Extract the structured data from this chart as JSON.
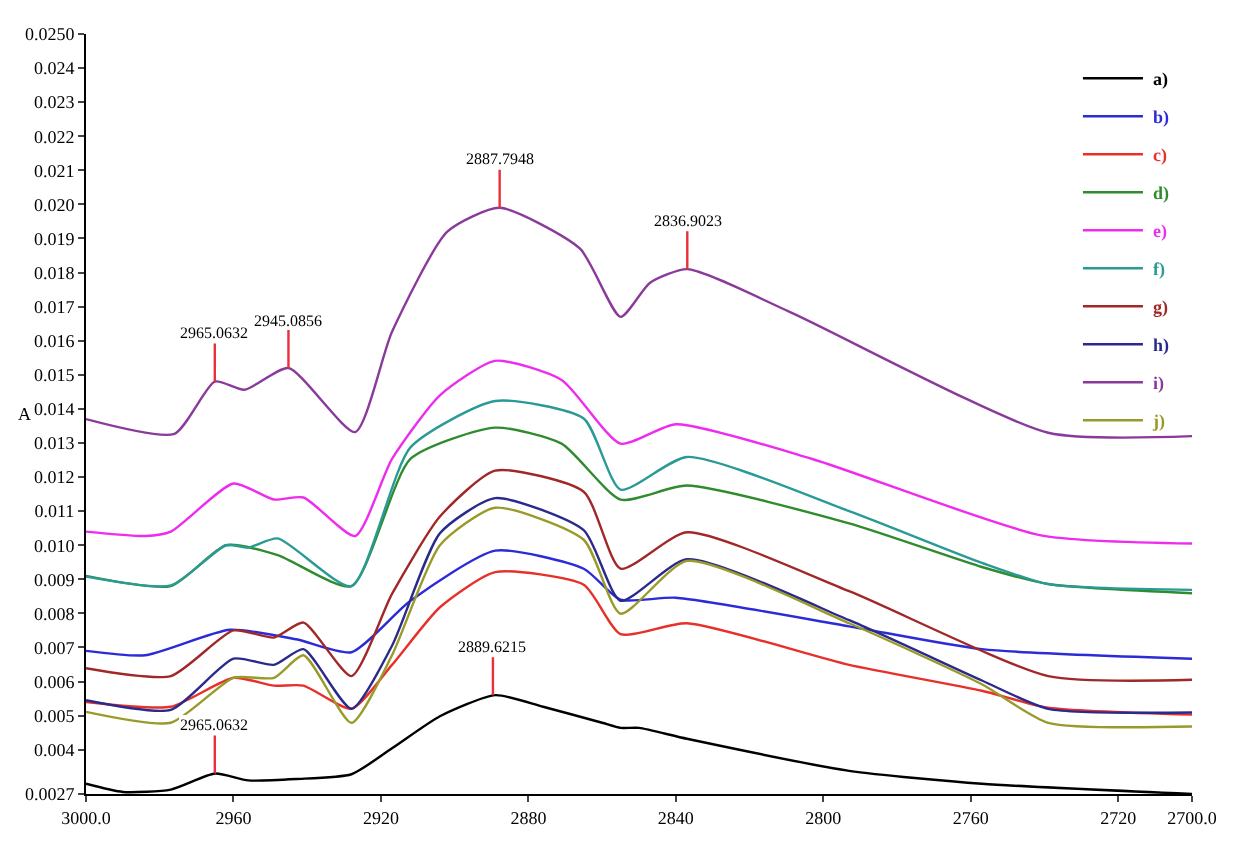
{
  "chart_data": {
    "type": "line",
    "ylabel": "A",
    "xlim": [
      3000,
      2700
    ],
    "xticks": [
      {
        "value": 3000,
        "label": "3000.0"
      },
      2960,
      2920,
      2880,
      2840,
      2800,
      2760,
      2720,
      {
        "value": 2700,
        "label": "2700.0"
      }
    ],
    "ylim": [
      0.0027,
      0.025
    ],
    "yticks": [
      0.0027,
      0.004,
      0.005,
      0.006,
      0.007,
      0.008,
      0.009,
      {
        "value": 0.01,
        "label": "0.010"
      },
      0.011,
      0.012,
      0.013,
      0.014,
      0.015,
      0.016,
      0.017,
      0.018,
      0.019,
      {
        "value": 0.02,
        "label": "0.020"
      },
      0.021,
      0.022,
      0.023,
      0.024,
      {
        "value": 0.025,
        "label": "0.0250"
      }
    ],
    "legend": "top right",
    "marker": "none",
    "line_style": "solid",
    "annotations": [
      {
        "text": "2965.0632",
        "x": 2965.0632,
        "y": 0.0148
      },
      {
        "text": "2945.0856",
        "x": 2945.0856,
        "y": 0.0152
      },
      {
        "text": "2887.7948",
        "x": 2887.7948,
        "y": 0.0199
      },
      {
        "text": "2836.9023",
        "x": 2836.9023,
        "y": 0.0181
      },
      {
        "text": "2889.6215",
        "x": 2889.6215,
        "y": 0.0056
      },
      {
        "text": "2965.0632",
        "x": 2965.0632,
        "y": 0.0033
      }
    ],
    "series": [
      {
        "name": "a)",
        "color": "#000000",
        "x": [
          3000,
          2990,
          2977,
          2965,
          2956,
          2943,
          2928,
          2917,
          2904,
          2889,
          2876,
          2860,
          2855,
          2850,
          2837,
          2793,
          2757,
          2700
        ],
        "values": [
          0.003,
          0.00276,
          0.00283,
          0.0033,
          0.0031,
          0.00314,
          0.00328,
          0.00404,
          0.00498,
          0.0056,
          0.00526,
          0.00479,
          0.00464,
          0.00464,
          0.00432,
          0.00338,
          0.003,
          0.0027
        ]
      },
      {
        "name": "b)",
        "color": "#2b2bd8",
        "x": [
          3000,
          2984,
          2961,
          2943,
          2928,
          2912,
          2889,
          2865,
          2855,
          2840,
          2793,
          2757,
          2700
        ],
        "values": [
          0.0069,
          0.00677,
          0.00752,
          0.00724,
          0.00686,
          0.00837,
          0.00984,
          0.00931,
          0.0084,
          0.00846,
          0.00762,
          0.00695,
          0.00667
        ]
      },
      {
        "name": "c)",
        "color": "#e8302a",
        "x": [
          3000,
          2977,
          2960,
          2949,
          2941,
          2928,
          2917,
          2904,
          2889,
          2865,
          2855,
          2837,
          2793,
          2757,
          2739,
          2700
        ],
        "values": [
          0.0054,
          0.00526,
          0.00611,
          0.00588,
          0.00588,
          0.0052,
          0.00649,
          0.00818,
          0.00921,
          0.00884,
          0.00739,
          0.00771,
          0.00649,
          0.00573,
          0.00523,
          0.00503
        ]
      },
      {
        "name": "d)",
        "color": "#2e8b2e",
        "x": [
          3000,
          2977,
          2962,
          2948,
          2928,
          2912,
          2889,
          2871,
          2855,
          2837,
          2793,
          2757,
          2739,
          2700
        ],
        "values": [
          0.0091,
          0.0088,
          0.01,
          0.00971,
          0.0088,
          0.01253,
          0.01345,
          0.01298,
          0.01134,
          0.01175,
          0.01064,
          0.00936,
          0.00886,
          0.00859
        ]
      },
      {
        "name": "e)",
        "color": "#ee2cee",
        "x": [
          3000,
          2984,
          2977,
          2960,
          2949,
          2941,
          2927,
          2917,
          2904,
          2889,
          2871,
          2855,
          2840,
          2803,
          2741,
          2700
        ],
        "values": [
          0.0104,
          0.01027,
          0.0104,
          0.01181,
          0.01134,
          0.0114,
          0.01027,
          0.01253,
          0.0144,
          0.01541,
          0.01485,
          0.01298,
          0.01355,
          0.01253,
          0.01029,
          0.01005
        ]
      },
      {
        "name": "f)",
        "color": "#2a9a96",
        "x": [
          3000,
          2977,
          2962,
          2956,
          2948,
          2928,
          2912,
          2889,
          2865,
          2855,
          2837,
          2793,
          2757,
          2739,
          2700
        ],
        "values": [
          0.00908,
          0.00882,
          0.01,
          0.00993,
          0.0102,
          0.0088,
          0.01287,
          0.01423,
          0.01372,
          0.01163,
          0.01259,
          0.011,
          0.00948,
          0.00886,
          0.00869
        ]
      },
      {
        "name": "g)",
        "color": "#a02828",
        "x": [
          3000,
          2977,
          2960,
          2949,
          2941,
          2928,
          2917,
          2904,
          2889,
          2865,
          2855,
          2837,
          2793,
          2739,
          2700
        ],
        "values": [
          0.00639,
          0.00616,
          0.0075,
          0.00729,
          0.00773,
          0.00616,
          0.00857,
          0.01084,
          0.01219,
          0.01157,
          0.00931,
          0.01038,
          0.00865,
          0.00616,
          0.00605
        ]
      },
      {
        "name": "h)",
        "color": "#2a2a8c",
        "x": [
          3000,
          2977,
          2960,
          2949,
          2941,
          2928,
          2917,
          2904,
          2889,
          2865,
          2855,
          2837,
          2793,
          2757,
          2739,
          2700
        ],
        "values": [
          0.00545,
          0.00517,
          0.00667,
          0.00649,
          0.00695,
          0.0052,
          0.00705,
          0.01035,
          0.01138,
          0.01044,
          0.00837,
          0.00959,
          0.0078,
          0.00603,
          0.0052,
          0.00509
        ]
      },
      {
        "name": "i)",
        "color": "#8a3a9a",
        "x": [
          3000,
          2976,
          2965.0632,
          2957,
          2945.0856,
          2927,
          2917,
          2902,
          2887.7948,
          2866,
          2855,
          2847,
          2836.9023,
          2809,
          2739,
          2700
        ],
        "values": [
          0.0137,
          0.01327,
          0.0148,
          0.01456,
          0.0152,
          0.01332,
          0.01626,
          0.0192,
          0.0199,
          0.0187,
          0.0167,
          0.0177,
          0.0181,
          0.01684,
          0.0133,
          0.0132
        ]
      },
      {
        "name": "j)",
        "color": "#9a9a2a",
        "x": [
          3000,
          2977,
          2960,
          2949,
          2941,
          2928,
          2917,
          2904,
          2889,
          2865,
          2855,
          2837,
          2793,
          2757,
          2739,
          2700
        ],
        "values": [
          0.00511,
          0.00479,
          0.00611,
          0.00611,
          0.00677,
          0.00479,
          0.00677,
          0.01,
          0.0111,
          0.01016,
          0.00799,
          0.00954,
          0.00771,
          0.00592,
          0.00479,
          0.00468
        ]
      }
    ]
  }
}
